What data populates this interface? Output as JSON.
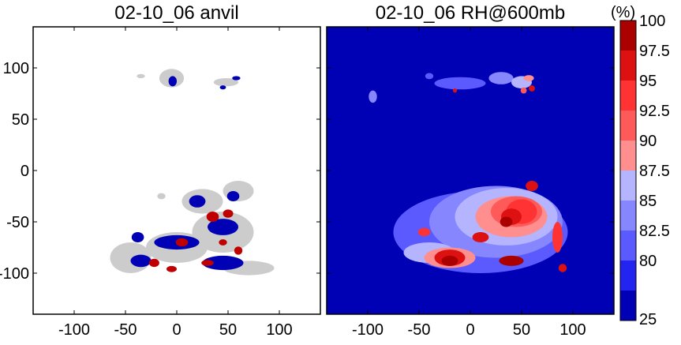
{
  "chart_data": [
    {
      "type": "heatmap",
      "title": "02-10_06 anvil",
      "xlim": [
        -140,
        140
      ],
      "ylim": [
        -140,
        140
      ],
      "x_ticks": [
        -100,
        -50,
        0,
        50,
        100
      ],
      "y_ticks": [
        100,
        50,
        0,
        -50,
        -100
      ],
      "x_tick_labels": [
        "-100",
        "-50",
        "0",
        "50",
        "100"
      ],
      "y_tick_labels": [
        "100",
        "50",
        "0",
        "-50",
        "-100"
      ],
      "background_color": "#ffffff",
      "categories": [
        {
          "name": "anvil",
          "color": "#cccccc"
        },
        {
          "name": "blue core",
          "color": "#0000b4"
        },
        {
          "name": "red core",
          "color": "#c00000"
        }
      ],
      "regions": [
        {
          "category": "anvil",
          "cx": -5,
          "cy": 90,
          "rx": 12,
          "ry": 9
        },
        {
          "category": "anvil",
          "cx": -35,
          "cy": 92,
          "rx": 4,
          "ry": 2
        },
        {
          "category": "blue core",
          "cx": -4,
          "cy": 87,
          "rx": 4,
          "ry": 5
        },
        {
          "category": "anvil",
          "cx": 48,
          "cy": 86,
          "rx": 12,
          "ry": 4
        },
        {
          "category": "blue core",
          "cx": 58,
          "cy": 90,
          "rx": 4,
          "ry": 2
        },
        {
          "category": "blue core",
          "cx": 45,
          "cy": 81,
          "rx": 3,
          "ry": 2
        },
        {
          "category": "anvil",
          "cx": 25,
          "cy": -30,
          "rx": 20,
          "ry": 12
        },
        {
          "category": "anvil",
          "cx": 60,
          "cy": -20,
          "rx": 15,
          "ry": 10
        },
        {
          "category": "anvil",
          "cx": 45,
          "cy": -60,
          "rx": 30,
          "ry": 20
        },
        {
          "category": "anvil",
          "cx": 0,
          "cy": -75,
          "rx": 30,
          "ry": 15
        },
        {
          "category": "anvil",
          "cx": -45,
          "cy": -85,
          "rx": 20,
          "ry": 15
        },
        {
          "category": "anvil",
          "cx": 70,
          "cy": -95,
          "rx": 25,
          "ry": 7
        },
        {
          "category": "anvil",
          "cx": -15,
          "cy": -25,
          "rx": 4,
          "ry": 3
        },
        {
          "category": "blue core",
          "cx": 0,
          "cy": -70,
          "rx": 22,
          "ry": 7
        },
        {
          "category": "blue core",
          "cx": -38,
          "cy": -65,
          "rx": 6,
          "ry": 5
        },
        {
          "category": "blue core",
          "cx": 20,
          "cy": -30,
          "rx": 8,
          "ry": 6
        },
        {
          "category": "blue core",
          "cx": 55,
          "cy": -25,
          "rx": 6,
          "ry": 5
        },
        {
          "category": "blue core",
          "cx": 45,
          "cy": -55,
          "rx": 15,
          "ry": 8
        },
        {
          "category": "blue core",
          "cx": 45,
          "cy": -90,
          "rx": 20,
          "ry": 7
        },
        {
          "category": "blue core",
          "cx": -35,
          "cy": -88,
          "rx": 10,
          "ry": 6
        },
        {
          "category": "red core",
          "cx": 35,
          "cy": -45,
          "rx": 6,
          "ry": 5
        },
        {
          "category": "red core",
          "cx": 50,
          "cy": -42,
          "rx": 5,
          "ry": 4
        },
        {
          "category": "red core",
          "cx": 5,
          "cy": -70,
          "rx": 6,
          "ry": 4
        },
        {
          "category": "red core",
          "cx": -22,
          "cy": -90,
          "rx": 5,
          "ry": 4
        },
        {
          "category": "red core",
          "cx": 30,
          "cy": -90,
          "rx": 6,
          "ry": 3
        },
        {
          "category": "red core",
          "cx": 60,
          "cy": -78,
          "rx": 4,
          "ry": 4
        },
        {
          "category": "red core",
          "cx": 45,
          "cy": -70,
          "rx": 4,
          "ry": 3
        },
        {
          "category": "red core",
          "cx": -5,
          "cy": -96,
          "rx": 5,
          "ry": 3
        }
      ]
    },
    {
      "type": "heatmap",
      "title": "02-10_06 RH@600mb",
      "xlim": [
        -140,
        140
      ],
      "ylim": [
        -140,
        140
      ],
      "x_ticks": [
        -100,
        -50,
        0,
        50,
        100
      ],
      "x_tick_labels": [
        "-100",
        "-50",
        "0",
        "50",
        "100"
      ],
      "background_color": "#0000b4",
      "regions": [
        {
          "level": 82.5,
          "cx": -40,
          "cy": 92,
          "rx": 4,
          "ry": 3
        },
        {
          "level": 82.5,
          "cx": -10,
          "cy": 85,
          "rx": 25,
          "ry": 6
        },
        {
          "level": 85,
          "cx": -95,
          "cy": 72,
          "rx": 4,
          "ry": 6
        },
        {
          "level": 85,
          "cx": 30,
          "cy": 90,
          "rx": 12,
          "ry": 6
        },
        {
          "level": 87.5,
          "cx": 50,
          "cy": 86,
          "rx": 10,
          "ry": 6
        },
        {
          "level": 90,
          "cx": 57,
          "cy": 90,
          "rx": 5,
          "ry": 3
        },
        {
          "level": 92.5,
          "cx": 52,
          "cy": 78,
          "rx": 3,
          "ry": 3
        },
        {
          "level": 97.5,
          "cx": -15,
          "cy": 78,
          "rx": 2,
          "ry": 2
        },
        {
          "level": 97.5,
          "cx": 60,
          "cy": 80,
          "rx": 3,
          "ry": 3
        },
        {
          "level": 82.5,
          "cx": 10,
          "cy": -60,
          "rx": 85,
          "ry": 40
        },
        {
          "level": 85,
          "cx": 25,
          "cy": -50,
          "rx": 65,
          "ry": 35
        },
        {
          "level": 87.5,
          "cx": 35,
          "cy": -45,
          "rx": 50,
          "ry": 28
        },
        {
          "level": 87.5,
          "cx": -40,
          "cy": -80,
          "rx": 25,
          "ry": 10
        },
        {
          "level": 90,
          "cx": 40,
          "cy": -45,
          "rx": 35,
          "ry": 20
        },
        {
          "level": 90,
          "cx": -20,
          "cy": -85,
          "rx": 25,
          "ry": 10
        },
        {
          "level": 92.5,
          "cx": 45,
          "cy": -40,
          "rx": 25,
          "ry": 15
        },
        {
          "level": 95,
          "cx": 50,
          "cy": -40,
          "rx": 15,
          "ry": 12
        },
        {
          "level": 97.5,
          "cx": 40,
          "cy": -45,
          "rx": 10,
          "ry": 8
        },
        {
          "level": 100,
          "cx": 35,
          "cy": -50,
          "rx": 6,
          "ry": 5
        },
        {
          "level": 97.5,
          "cx": -20,
          "cy": -85,
          "rx": 15,
          "ry": 8
        },
        {
          "level": 100,
          "cx": -20,
          "cy": -88,
          "rx": 8,
          "ry": 5
        },
        {
          "level": 97.5,
          "cx": 60,
          "cy": -15,
          "rx": 6,
          "ry": 5
        },
        {
          "level": 100,
          "cx": 40,
          "cy": -88,
          "rx": 12,
          "ry": 5
        },
        {
          "level": 95,
          "cx": 85,
          "cy": -65,
          "rx": 5,
          "ry": 15
        },
        {
          "level": 97.5,
          "cx": 90,
          "cy": -95,
          "rx": 4,
          "ry": 4
        },
        {
          "level": 95,
          "cx": -45,
          "cy": -60,
          "rx": 6,
          "ry": 4
        },
        {
          "level": 97.5,
          "cx": 10,
          "cy": -65,
          "rx": 8,
          "ry": 5
        }
      ]
    }
  ],
  "colorbar": {
    "unit_label": "(%)",
    "tick_labels": [
      "100",
      "97.5",
      "95",
      "92.5",
      "90",
      "87.5",
      "85",
      "82.5",
      "80",
      "25"
    ],
    "levels": [
      100,
      97.5,
      95,
      92.5,
      90,
      87.5,
      85,
      82.5,
      80,
      25
    ],
    "colors": [
      "#aa0000",
      "#dd1111",
      "#ff3333",
      "#ff5a5a",
      "#ff8f8f",
      "#b4b4ff",
      "#8686ff",
      "#5a5aff",
      "#2424f0",
      "#0000b4"
    ]
  }
}
